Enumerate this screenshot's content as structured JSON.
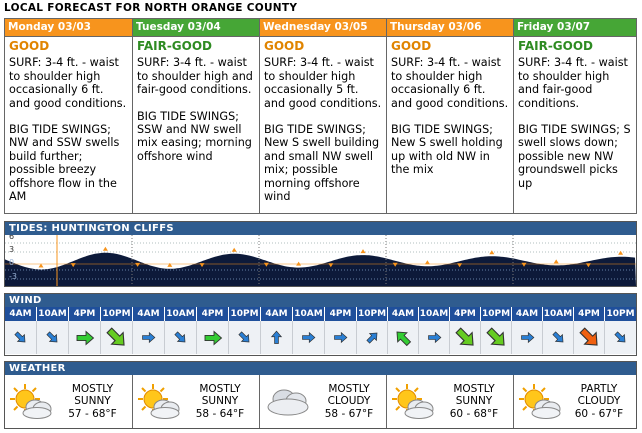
{
  "page_title": "LOCAL FORECAST FOR NORTH ORANGE COUNTY",
  "days": [
    {
      "label": "Monday 03/03",
      "rating": "GOOD",
      "rating_class": "good",
      "surf": "SURF: 3-4 ft. - waist to shoulder high occasionally 6 ft. and good conditions.",
      "notes": "BIG TIDE SWINGS; NW and SSW swells build further; possible breezy offshore flow in the AM"
    },
    {
      "label": "Tuesday 03/04",
      "rating": "FAIR-GOOD",
      "rating_class": "fair",
      "surf": "SURF: 3-4 ft. - waist to shoulder high and fair-good conditions.",
      "notes": "BIG TIDE SWINGS; SSW and NW swell mix easing; morning offshore wind"
    },
    {
      "label": "Wednesday 03/05",
      "rating": "GOOD",
      "rating_class": "good",
      "surf": "SURF: 3-4 ft. - waist to shoulder high occasionally 5 ft. and good conditions.",
      "notes": "BIG TIDE SWINGS; New S swell building and small NW swell mix; possible morning offshore wind"
    },
    {
      "label": "Thursday 03/06",
      "rating": "GOOD",
      "rating_class": "good",
      "surf": "SURF: 3-4 ft. - waist to shoulder high occasionally 6 ft. and good conditions.",
      "notes": "BIG TIDE SWINGS; New S swell holding up with old NW in the mix"
    },
    {
      "label": "Friday 03/07",
      "rating": "FAIR-GOOD",
      "rating_class": "fair",
      "surf": "SURF: 3-4 ft. - waist to shoulder high and fair-good conditions.",
      "notes": "BIG TIDE SWINGS; S swell slows down; possible new NW groundswell picks up"
    }
  ],
  "tides": {
    "header": "TIDES: HUNTINGTON CLIFFS",
    "y_labels": [
      "6",
      "3",
      "0",
      "-3"
    ],
    "colors": {
      "water": "#0d1a3a",
      "marker": "#f7941d",
      "now": "#f7941d"
    }
  },
  "wind": {
    "header": "WIND",
    "slots": [
      {
        "time": "4AM",
        "icon": "arrow-southeast",
        "size": "small",
        "color": "#2a7fd4"
      },
      {
        "time": "10AM",
        "icon": "arrow-southeast",
        "size": "small",
        "color": "#2a7fd4"
      },
      {
        "time": "4PM",
        "icon": "arrow-east",
        "size": "medium",
        "color": "#33cc33"
      },
      {
        "time": "10PM",
        "icon": "arrow-southeast",
        "size": "large",
        "color": "#66cc22"
      },
      {
        "time": "4AM",
        "icon": "arrow-east",
        "size": "small",
        "color": "#2a7fd4"
      },
      {
        "time": "10AM",
        "icon": "arrow-southeast",
        "size": "small",
        "color": "#2a7fd4"
      },
      {
        "time": "4PM",
        "icon": "arrow-east",
        "size": "medium",
        "color": "#33cc33"
      },
      {
        "time": "10PM",
        "icon": "arrow-southeast",
        "size": "small",
        "color": "#2a7fd4"
      },
      {
        "time": "4AM",
        "icon": "arrow-north",
        "size": "small",
        "color": "#2a7fd4"
      },
      {
        "time": "10AM",
        "icon": "arrow-east",
        "size": "small",
        "color": "#2a7fd4"
      },
      {
        "time": "4PM",
        "icon": "arrow-east",
        "size": "small",
        "color": "#2a7fd4"
      },
      {
        "time": "10PM",
        "icon": "arrow-northeast",
        "size": "small",
        "color": "#2a7fd4"
      },
      {
        "time": "4AM",
        "icon": "arrow-northwest",
        "size": "medium",
        "color": "#33cc33"
      },
      {
        "time": "10AM",
        "icon": "arrow-east",
        "size": "small",
        "color": "#2a7fd4"
      },
      {
        "time": "4PM",
        "icon": "arrow-southeast",
        "size": "large",
        "color": "#66cc22"
      },
      {
        "time": "10PM",
        "icon": "arrow-southeast",
        "size": "large",
        "color": "#66cc22"
      },
      {
        "time": "4AM",
        "icon": "arrow-east",
        "size": "small",
        "color": "#2a7fd4"
      },
      {
        "time": "10AM",
        "icon": "arrow-southeast",
        "size": "small",
        "color": "#2a7fd4"
      },
      {
        "time": "4PM",
        "icon": "arrow-southeast",
        "size": "large",
        "color": "#f06010"
      },
      {
        "time": "10PM",
        "icon": "arrow-southeast",
        "size": "small",
        "color": "#2a7fd4"
      }
    ]
  },
  "weather": {
    "header": "WEATHER",
    "days": [
      {
        "line1": "MOSTLY",
        "line2": "SUNNY",
        "temps": "57 - 68°F",
        "icon": "sun-cloud-icon"
      },
      {
        "line1": "MOSTLY",
        "line2": "SUNNY",
        "temps": "58 - 64°F",
        "icon": "sun-cloud-icon"
      },
      {
        "line1": "MOSTLY",
        "line2": "CLOUDY",
        "temps": "58 - 67°F",
        "icon": "cloud-icon"
      },
      {
        "line1": "MOSTLY",
        "line2": "SUNNY",
        "temps": "60 - 68°F",
        "icon": "sun-cloud-icon"
      },
      {
        "line1": "PARTLY",
        "line2": "CLOUDY",
        "temps": "60 - 67°F",
        "icon": "sun-cloud-icon"
      }
    ]
  }
}
